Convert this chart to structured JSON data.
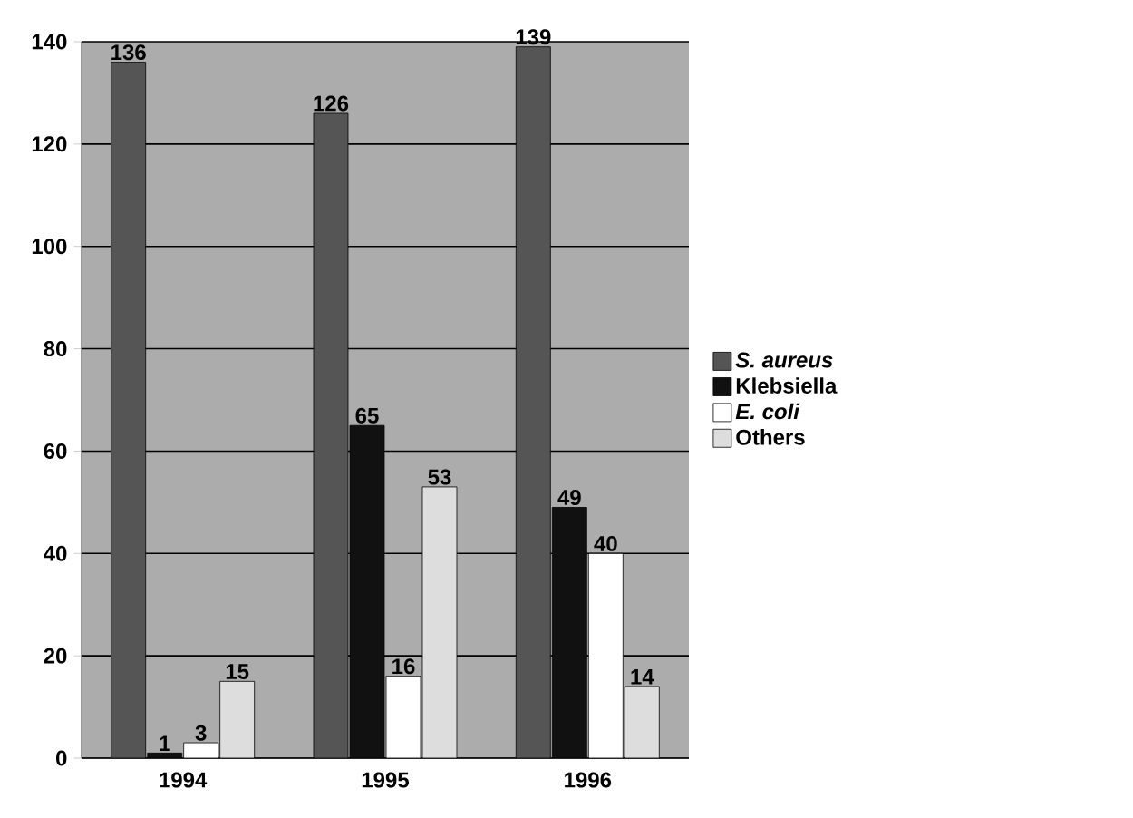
{
  "chart_data": {
    "type": "bar",
    "categories": [
      "1994",
      "1995",
      "1996"
    ],
    "series": [
      {
        "name": "*S. aureus*",
        "color": "#555555",
        "values": [
          136,
          126,
          139
        ]
      },
      {
        "name": "Klebsiella",
        "color": "#111111",
        "values": [
          1,
          65,
          49
        ]
      },
      {
        "name": "*E. coli*",
        "color": "#ffffff",
        "values": [
          3,
          16,
          40
        ]
      },
      {
        "name": "Others",
        "color": "#dddddd",
        "values": [
          15,
          53,
          14
        ]
      }
    ],
    "ylim": [
      0,
      140
    ],
    "yticks": [
      0,
      20,
      40,
      60,
      80,
      100,
      120,
      140
    ],
    "grid": "y",
    "legend": "right",
    "data_labels": true
  }
}
